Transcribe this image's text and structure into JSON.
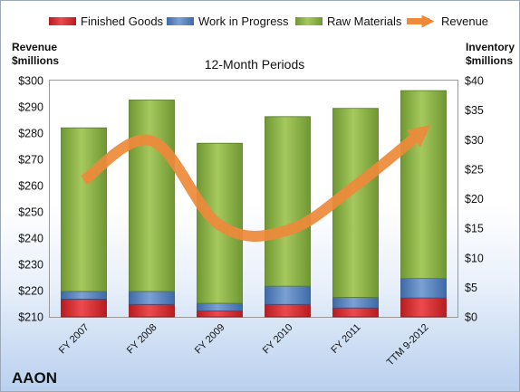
{
  "legend": {
    "finished_goods": "Finished Goods",
    "work_in_progress": "Work in Progress",
    "raw_materials": "Raw Materials",
    "revenue": "Revenue"
  },
  "subtitle": "12-Month Periods",
  "company": "AAON",
  "left_axis_title": [
    "Revenue",
    "$millions"
  ],
  "right_axis_title": [
    "Inventory",
    "$millions"
  ],
  "colors": {
    "finished_goods": "#d8252a",
    "work_in_progress": "#4f7fc0",
    "raw_materials": "#92b84a",
    "revenue": "#ee8a3a"
  },
  "chart_data": {
    "type": "bar",
    "stacked": true,
    "title": "12-Month Periods",
    "categories": [
      "FY 2007",
      "FY 2008",
      "FY 2009",
      "FY 2010",
      "FY 2011",
      "TTM 9-2012"
    ],
    "series": [
      {
        "name": "Finished Goods",
        "axis": "right",
        "values": [
          3.0,
          2.1,
          1.0,
          2.1,
          1.5,
          3.2
        ]
      },
      {
        "name": "Work in Progress",
        "axis": "right",
        "values": [
          1.3,
          2.2,
          1.3,
          3.1,
          1.8,
          3.3
        ]
      },
      {
        "name": "Raw Materials",
        "axis": "right",
        "values": [
          27.7,
          32.4,
          27.1,
          28.7,
          32.0,
          31.8
        ]
      },
      {
        "name": "Revenue",
        "type": "line",
        "axis": "left",
        "values": [
          262,
          277,
          245,
          243,
          260,
          281
        ]
      }
    ],
    "ylabel_left": "Revenue $millions",
    "ylabel_right": "Inventory $millions",
    "ylim_left": [
      210,
      300
    ],
    "ylim_right": [
      0,
      40
    ],
    "yticks_left": [
      "$210",
      "$220",
      "$230",
      "$240",
      "$250",
      "$260",
      "$270",
      "$280",
      "$290",
      "$300"
    ],
    "yticks_right": [
      "$0",
      "$5",
      "$10",
      "$15",
      "$20",
      "$25",
      "$30",
      "$35",
      "$40"
    ],
    "grid": false,
    "legend": "top"
  }
}
